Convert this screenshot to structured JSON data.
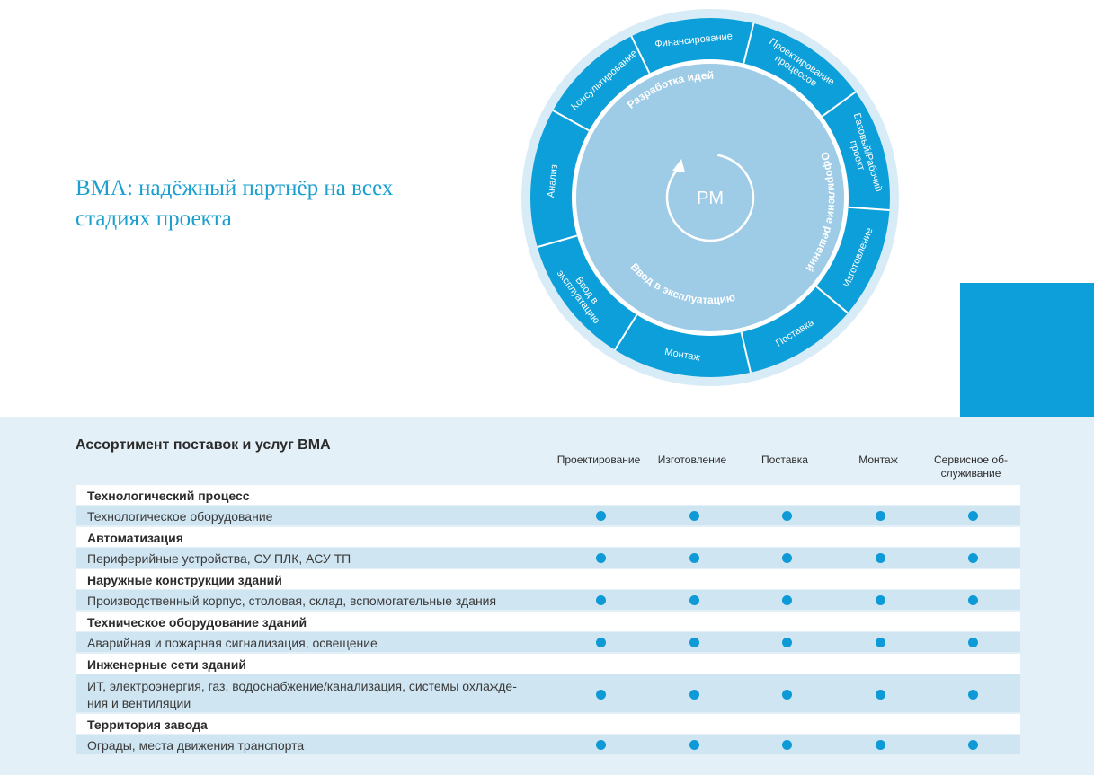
{
  "headline": "BMA: надёжный партнёр на всех стадиях проекта",
  "wheel": {
    "center": "PM",
    "inner_labels": [
      "Разработка идей",
      "Оформление решений",
      "Ввод в эксплуатацию"
    ],
    "outer_segments": [
      [
        "Финансирование"
      ],
      [
        "Проектирование",
        "процессов"
      ],
      [
        "Базовый/Рабочий",
        "проект"
      ],
      [
        "Изготовление"
      ],
      [
        "Поставка"
      ],
      [
        "Монтаж"
      ],
      [
        "Ввод в",
        "эксплуатацию"
      ],
      [
        "Анализ"
      ],
      [
        "Консультирование"
      ]
    ],
    "colors": {
      "outer": "#0d9fd9",
      "inner": "#9ecbe6",
      "halo": "#d8ecf7"
    }
  },
  "table": {
    "title": "Ассортимент поставок и услуг BMA",
    "columns": [
      "Проектирование",
      "Изготовление",
      "Поставка",
      "Монтаж",
      "Сервисное об-\nслуживание"
    ],
    "rows": [
      {
        "type": "cat",
        "label": "Технологический процесс"
      },
      {
        "type": "item",
        "label": "Технологическое оборудование"
      },
      {
        "type": "cat",
        "label": "Автоматизация"
      },
      {
        "type": "item",
        "label": "Периферийные устройства, СУ ПЛК, АСУ ТП"
      },
      {
        "type": "cat",
        "label": "Наружные конструкции зданий"
      },
      {
        "type": "item",
        "label": "Производственный корпус, столовая, склад, вспомогательные здания"
      },
      {
        "type": "cat",
        "label": "Техническое оборудование зданий"
      },
      {
        "type": "item",
        "label": "Аварийная и пожарная сигнализация, освещение"
      },
      {
        "type": "cat",
        "label": "Инженерные сети зданий"
      },
      {
        "type": "item",
        "label": "ИТ, электроэнергия, газ, водоснабжение/канализация, системы охлажде-\nния и вентиляции"
      },
      {
        "type": "cat",
        "label": "Территория завода"
      },
      {
        "type": "item",
        "label": "Ограды, места движения транспорта"
      }
    ]
  }
}
